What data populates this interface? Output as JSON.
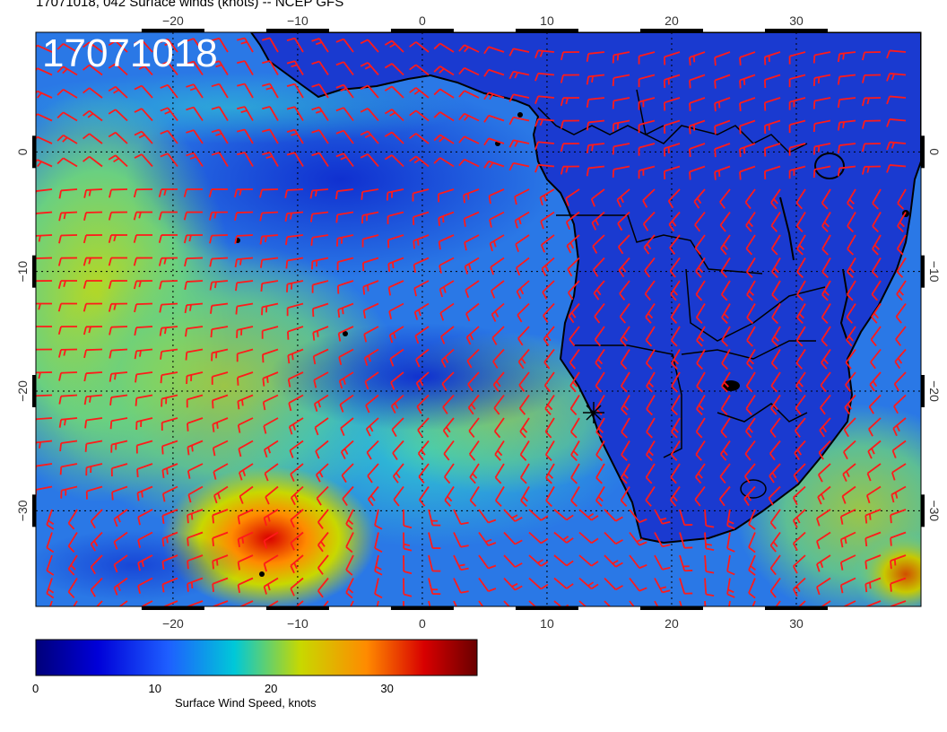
{
  "title": "17071018, 042 Surface winds (knots) -- NCEP GFS",
  "stamp": "17071018",
  "lon_labels": [
    "−20",
    "−10",
    "0",
    "10",
    "20",
    "30"
  ],
  "lat_labels": [
    "0",
    "−10",
    "−20",
    "−30"
  ],
  "colorbar": {
    "label": "Surface Wind Speed, knots",
    "ticks": [
      "0",
      "10",
      "20",
      "30"
    ],
    "range": [
      0,
      38
    ],
    "colors": [
      "#00007a",
      "#0000d8",
      "#1e5fff",
      "#00c8d8",
      "#c8d800",
      "#ff8a00",
      "#d80000",
      "#6a0000"
    ]
  },
  "map": {
    "lon_range": [
      -31,
      40
    ],
    "lat_range": [
      -38,
      10
    ],
    "ocean_color": "#2a8ae8",
    "land_color": "#1a3cc8",
    "barb_color": "#ff1a1a",
    "coast_color": "#000000"
  }
}
